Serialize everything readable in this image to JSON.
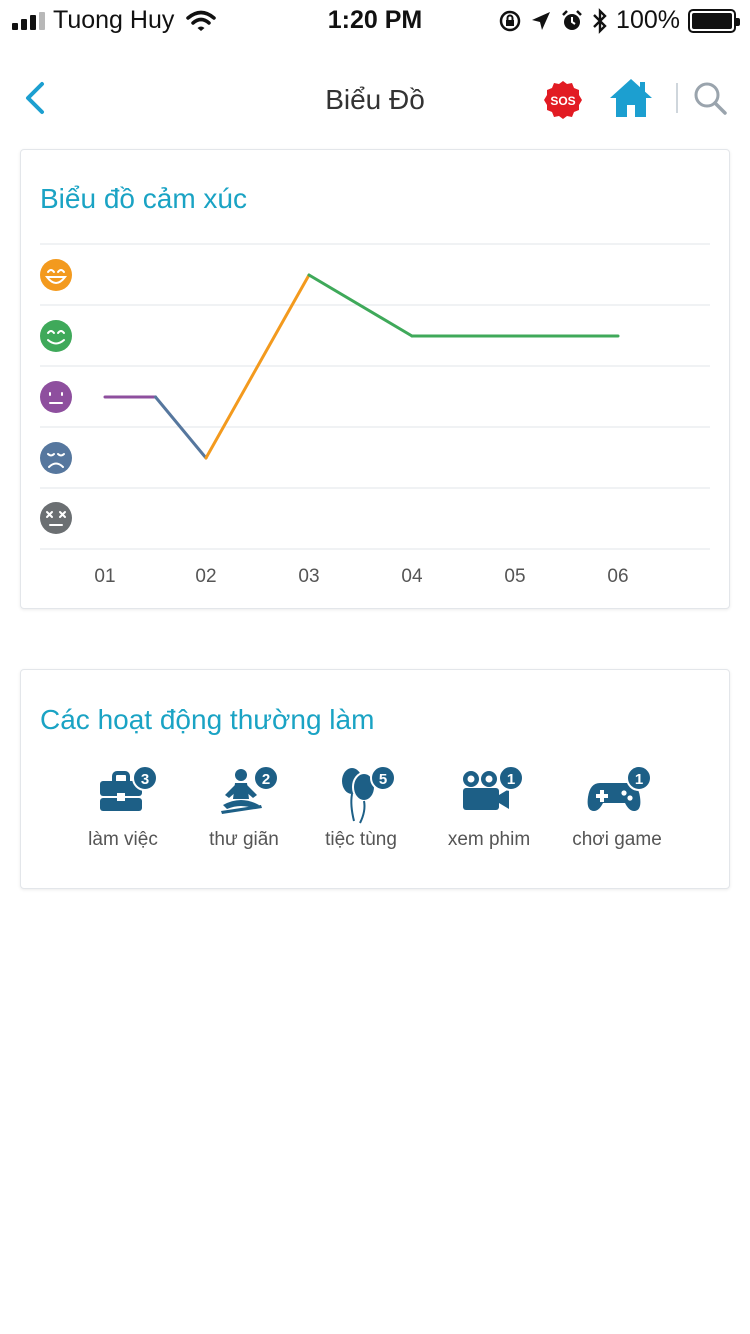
{
  "status_bar": {
    "carrier": "Tuong Huy",
    "time": "1:20 PM",
    "battery": "100%"
  },
  "nav": {
    "title": "Biểu Đồ",
    "sos_label": "SOS",
    "icons": [
      "chevron-left-icon",
      "sos-icon",
      "home-icon",
      "search-icon"
    ]
  },
  "emotion_chart": {
    "title": "Biểu đồ cảm xúc"
  },
  "chart_data": {
    "type": "line",
    "title": "Biểu đồ cảm xúc",
    "categories": [
      "01",
      "02",
      "03",
      "04",
      "05",
      "06"
    ],
    "y_levels": [
      "very-happy",
      "happy",
      "neutral",
      "sad",
      "upset"
    ],
    "y_level_icons": [
      "grin-face-icon",
      "smile-face-icon",
      "neutral-face-icon",
      "sad-face-icon",
      "dizzy-face-icon"
    ],
    "y_level_colors": [
      "#f39a1e",
      "#3fa95a",
      "#8e4f9e",
      "#56779e",
      "#6b6f72"
    ],
    "ylim": [
      1,
      5
    ],
    "points": [
      {
        "x": "01",
        "y": 3
      },
      {
        "x": "01.5",
        "y": 3
      },
      {
        "x": "02",
        "y": 2
      },
      {
        "x": "03",
        "y": 5
      },
      {
        "x": "04",
        "y": 4
      },
      {
        "x": "05",
        "y": 4
      },
      {
        "x": "06",
        "y": 4
      }
    ],
    "segment_colors": [
      "#8e4f9e",
      "#56779e",
      "#f39a1e",
      "#3fa95a",
      "#3fa95a",
      "#3fa95a"
    ],
    "grid": true
  },
  "activities": {
    "title": "Các hoạt động thường làm",
    "items": [
      {
        "label": "làm việc",
        "count": "3",
        "icon": "briefcase-icon"
      },
      {
        "label": "thư giãn",
        "count": "2",
        "icon": "meditation-icon"
      },
      {
        "label": "tiệc tùng",
        "count": "5",
        "icon": "balloons-icon"
      },
      {
        "label": "xem phim",
        "count": "1",
        "icon": "movie-camera-icon"
      },
      {
        "label": "chơi game",
        "count": "1",
        "icon": "gamepad-icon"
      }
    ],
    "icon_color": "#1d5f86"
  }
}
